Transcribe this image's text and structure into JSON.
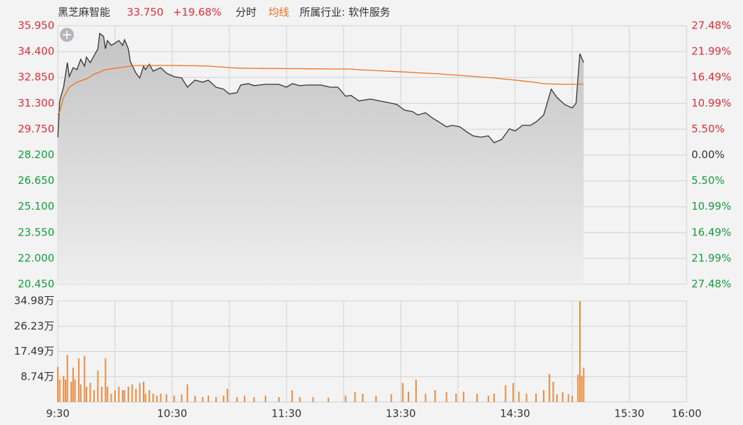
{
  "chart_data": [
    {
      "type": "line",
      "stock_name": "黑芝麻智能",
      "last_price": "33.750",
      "change": "+19.68%",
      "industry": "所属行业: 软件服务",
      "up_color": "#e0303b",
      "down_color": "#1a9a40",
      "x": [
        0,
        1,
        3,
        5,
        6,
        8,
        10,
        12,
        14,
        15,
        17,
        19,
        21,
        22,
        24,
        25,
        26,
        28,
        30,
        32,
        34,
        35,
        37,
        38,
        41,
        43,
        45,
        46,
        48,
        50,
        54,
        57,
        61,
        65,
        68,
        72,
        76,
        79,
        83,
        87,
        90,
        94,
        96,
        100,
        103,
        109,
        116,
        120,
        123,
        127,
        131,
        138,
        143,
        147,
        151,
        154,
        158,
        164,
        169,
        175,
        178,
        182,
        186,
        189,
        193,
        197,
        200,
        204,
        207,
        211,
        215,
        218,
        222,
        226,
        229,
        233,
        237,
        240,
        244,
        248,
        251,
        255,
        259,
        262,
        266,
        270,
        272,
        274,
        276
      ],
      "series": [
        {
          "name": "分时",
          "color": "#333333",
          "values": [
            29.27,
            31.44,
            32.27,
            33.74,
            32.9,
            33.44,
            33.32,
            33.94,
            33.53,
            34.07,
            33.74,
            34.15,
            34.57,
            35.49,
            35.32,
            34.57,
            35.07,
            34.78,
            34.91,
            35.07,
            34.78,
            35.11,
            34.57,
            33.82,
            33.11,
            32.82,
            33.53,
            33.32,
            33.65,
            33.23,
            33.44,
            33.11,
            32.9,
            32.82,
            32.27,
            32.69,
            32.57,
            32.69,
            32.27,
            32.15,
            31.86,
            31.94,
            32.4,
            32.48,
            32.36,
            32.44,
            32.44,
            32.27,
            32.48,
            32.36,
            32.4,
            32.4,
            32.27,
            32.27,
            31.73,
            31.77,
            31.44,
            31.56,
            31.44,
            31.31,
            31.23,
            30.89,
            30.81,
            30.6,
            30.73,
            30.39,
            30.18,
            29.89,
            29.98,
            29.89,
            29.56,
            29.35,
            29.27,
            29.35,
            28.93,
            29.14,
            29.77,
            29.64,
            29.98,
            29.98,
            30.18,
            30.6,
            32.15,
            31.65,
            31.23,
            31.02,
            31.31,
            34.28,
            33.75
          ]
        },
        {
          "name": "均线",
          "color": "#f07020",
          "values": [
            30.6,
            30.81,
            31.65,
            32.05,
            32.27,
            32.42,
            32.57,
            32.65,
            32.73,
            32.77,
            32.9,
            33.05,
            33.13,
            33.17,
            33.28,
            33.32,
            33.34,
            33.37,
            33.4,
            33.43,
            33.46,
            33.48,
            33.51,
            33.52,
            33.57,
            33.57,
            33.57,
            33.57,
            33.57,
            33.57,
            33.57,
            33.57,
            33.57,
            33.56,
            33.55,
            33.55,
            33.54,
            33.53,
            33.5,
            33.47,
            33.44,
            33.42,
            33.41,
            33.4,
            33.4,
            33.39,
            33.39,
            33.38,
            33.38,
            33.38,
            33.37,
            33.37,
            33.36,
            33.36,
            33.36,
            33.35,
            33.32,
            33.28,
            33.25,
            33.22,
            33.2,
            33.18,
            33.15,
            33.13,
            33.11,
            33.09,
            33.07,
            33.03,
            33.01,
            32.98,
            32.94,
            32.92,
            32.88,
            32.84,
            32.82,
            32.77,
            32.73,
            32.69,
            32.64,
            32.59,
            32.55,
            32.48,
            32.46,
            32.45,
            32.44,
            32.44,
            32.44,
            32.44,
            32.44
          ]
        }
      ],
      "xlim": [
        0,
        330
      ],
      "ylim": [
        20.45,
        35.95
      ],
      "yticks": [
        {
          "value": 35.95,
          "label": "35.950"
        },
        {
          "value": 34.4,
          "label": "34.400"
        },
        {
          "value": 32.85,
          "label": "32.850"
        },
        {
          "value": 31.3,
          "label": "31.300"
        },
        {
          "value": 29.75,
          "label": "29.750"
        },
        {
          "value": 28.2,
          "label": "28.200"
        },
        {
          "value": 26.65,
          "label": "26.650"
        },
        {
          "value": 25.1,
          "label": "25.100"
        },
        {
          "value": 23.55,
          "label": "23.550"
        },
        {
          "value": 22,
          "label": "22.000"
        },
        {
          "value": 20.45,
          "label": "20.450"
        }
      ],
      "y2lim": [
        -27.48,
        27.48
      ],
      "y2ticks": [
        {
          "value": 27.48,
          "label": "27.48%"
        },
        {
          "value": 21.99,
          "label": "21.99%"
        },
        {
          "value": 16.49,
          "label": "16.49%"
        },
        {
          "value": 10.99,
          "label": "10.99%"
        },
        {
          "value": 5.5,
          "label": "5.50%"
        },
        {
          "value": 0,
          "label": "0.00%"
        },
        {
          "value": -5.5,
          "label": "5.50%"
        },
        {
          "value": -10.99,
          "label": "10.99%"
        },
        {
          "value": -16.49,
          "label": "16.49%"
        },
        {
          "value": -21.99,
          "label": "21.99%"
        },
        {
          "value": -27.48,
          "label": "27.48%"
        }
      ],
      "grid": true
    },
    {
      "type": "bar",
      "color": "#f08a3c",
      "x": [
        0,
        1,
        3,
        4,
        5,
        7,
        8,
        9,
        11,
        12,
        14,
        15,
        17,
        19,
        21,
        23,
        25,
        26,
        28,
        30,
        32,
        34,
        35,
        37,
        39,
        41,
        43,
        45,
        46,
        48,
        50,
        52,
        54,
        57,
        61,
        65,
        68,
        72,
        76,
        79,
        83,
        87,
        89,
        94,
        98,
        103,
        109,
        116,
        123,
        127,
        134,
        142,
        151,
        156,
        160,
        167,
        175,
        181,
        184,
        188,
        193,
        198,
        204,
        209,
        213,
        220,
        226,
        229,
        235,
        239,
        242,
        246,
        251,
        255,
        258,
        260,
        262,
        265,
        268,
        270,
        273,
        274,
        275,
        276
      ],
      "values": [
        12.1,
        7.8,
        9.0,
        7.8,
        16.3,
        7.0,
        11.9,
        7.8,
        15.1,
        6.1,
        16.0,
        5.3,
        6.6,
        4.1,
        10.9,
        5.3,
        15.1,
        5.3,
        2.9,
        4.1,
        5.3,
        4.1,
        4.1,
        5.3,
        6.1,
        4.6,
        6.6,
        7.0,
        2.9,
        4.1,
        2.9,
        2.2,
        2.9,
        2.7,
        2.2,
        2.7,
        6.1,
        2.2,
        1.7,
        2.2,
        1.7,
        2.2,
        4.6,
        1.7,
        2.2,
        1.7,
        2.2,
        1.7,
        4.1,
        1.7,
        1.7,
        1.5,
        2.2,
        3.4,
        2.9,
        2.2,
        2.7,
        6.6,
        3.6,
        7.8,
        2.9,
        4.1,
        3.4,
        2.9,
        3.6,
        2.9,
        2.2,
        2.9,
        5.8,
        6.6,
        3.6,
        2.9,
        2.9,
        4.1,
        9.7,
        7.0,
        2.7,
        3.4,
        2.7,
        2.2,
        9.5,
        34.98,
        9.0,
        11.9
      ],
      "xlim": [
        0,
        330
      ],
      "xticks": [
        {
          "value": 0,
          "label": "9:30"
        },
        {
          "value": 30,
          "label": null
        },
        {
          "value": 60,
          "label": "10:30"
        },
        {
          "value": 90,
          "label": null
        },
        {
          "value": 120,
          "label": "11:30"
        },
        {
          "value": 150,
          "label": null
        },
        {
          "value": 180,
          "label": "13:30"
        },
        {
          "value": 210,
          "label": null
        },
        {
          "value": 240,
          "label": "14:30"
        },
        {
          "value": 270,
          "label": null
        },
        {
          "value": 300,
          "label": "15:30"
        },
        {
          "value": 330,
          "label": "16:00"
        }
      ],
      "ylim": [
        0,
        34.98
      ],
      "yticks": [
        {
          "value": 34.98,
          "label": "34.98万"
        },
        {
          "value": 26.23,
          "label": "26.23万"
        },
        {
          "value": 17.49,
          "label": "17.49万"
        },
        {
          "value": 8.74,
          "label": "8.74万"
        }
      ],
      "grid": true
    }
  ]
}
